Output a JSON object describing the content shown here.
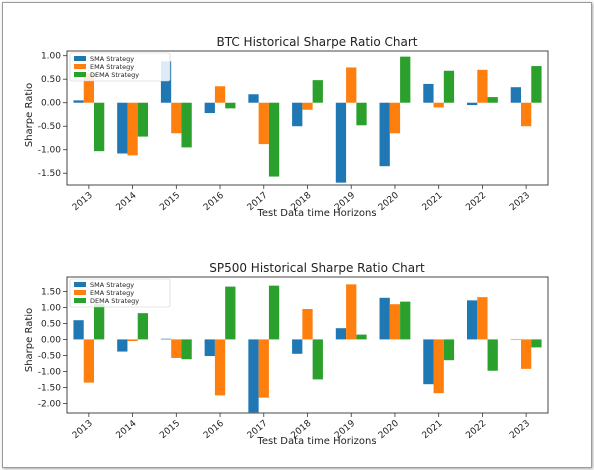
{
  "colors": {
    "sma": "#1f77b4",
    "ema": "#ff7f0e",
    "dema": "#2ca02c"
  },
  "chart_data": [
    {
      "type": "bar",
      "title": "BTC Historical Sharpe Ratio Chart",
      "xlabel": "Test Data time Horizons",
      "ylabel": "Sharpe Ratio",
      "categories": [
        "2013",
        "2014",
        "2015",
        "2016",
        "2017",
        "2018",
        "2019",
        "2020",
        "2021",
        "2022",
        "2023"
      ],
      "yticks": [
        "1.00",
        "0.50",
        "0.00",
        "-0.50",
        "-1.00",
        "-1.50"
      ],
      "ytick_values": [
        1.0,
        0.5,
        0.0,
        -0.5,
        -1.0,
        -1.5
      ],
      "ylim": [
        -1.75,
        1.1
      ],
      "legend_position": "top-left",
      "series": [
        {
          "name": "SMA Strategy",
          "color": "#1f77b4",
          "values": [
            0.05,
            -1.08,
            0.88,
            -0.22,
            0.18,
            -0.5,
            -1.7,
            -1.35,
            0.4,
            -0.05,
            0.33
          ]
        },
        {
          "name": "EMA Strategy",
          "color": "#ff7f0e",
          "values": [
            0.62,
            -1.12,
            -0.65,
            0.35,
            -0.88,
            -0.15,
            0.75,
            -0.65,
            -0.1,
            0.7,
            -0.5
          ]
        },
        {
          "name": "DEMA Strategy",
          "color": "#2ca02c",
          "values": [
            -1.03,
            -0.72,
            -0.95,
            -0.12,
            -1.57,
            0.48,
            -0.48,
            0.98,
            0.68,
            0.12,
            0.78
          ]
        }
      ]
    },
    {
      "type": "bar",
      "title": "SP500 Historical Sharpe Ratio Chart",
      "xlabel": "Test Data time Horizons",
      "ylabel": "Sharpe Ratio",
      "categories": [
        "2013",
        "2014",
        "2015",
        "2016",
        "2017",
        "2018",
        "2019",
        "2020",
        "2021",
        "2022",
        "2023"
      ],
      "yticks": [
        "1.50",
        "1.00",
        "0.50",
        "0.00",
        "-0.50",
        "-1.00",
        "-1.50",
        "-2.00"
      ],
      "ytick_values": [
        1.5,
        1.0,
        0.5,
        0.0,
        -0.5,
        -1.0,
        -1.5,
        -2.0
      ],
      "ylim": [
        -2.3,
        1.95
      ],
      "legend_position": "top-left",
      "series": [
        {
          "name": "SMA Strategy",
          "color": "#1f77b4",
          "values": [
            0.6,
            -0.38,
            0.02,
            -0.52,
            -2.28,
            -0.45,
            0.35,
            1.3,
            -1.4,
            1.22,
            0.0
          ]
        },
        {
          "name": "EMA Strategy",
          "color": "#ff7f0e",
          "values": [
            -1.35,
            -0.05,
            -0.58,
            -1.75,
            -1.82,
            0.95,
            1.72,
            1.1,
            -1.68,
            1.32,
            -0.92
          ]
        },
        {
          "name": "DEMA Strategy",
          "color": "#2ca02c",
          "values": [
            1.12,
            0.82,
            -0.62,
            1.65,
            1.68,
            -1.25,
            0.15,
            1.18,
            -0.65,
            -0.98,
            -0.25
          ]
        }
      ]
    }
  ]
}
